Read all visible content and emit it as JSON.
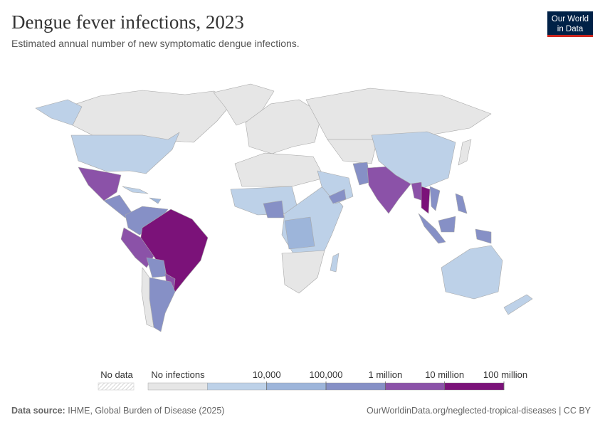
{
  "header": {
    "title": "Dengue fever infections, 2023",
    "subtitle": "Estimated annual number of new symptomatic dengue infections."
  },
  "logo": {
    "line1": "Our World",
    "line2": "in Data"
  },
  "legend": {
    "no_data": "No data",
    "no_infections": "No infections",
    "colors": [
      "#e6e6e6",
      "#bdd1e8",
      "#9db5da",
      "#8690c6",
      "#8b52a8",
      "#7b1279"
    ],
    "thresholds": [
      "10,000",
      "100,000",
      "1 million",
      "10 million",
      "100 million"
    ]
  },
  "footer": {
    "source_label": "Data source:",
    "source": "IHME, Global Burden of Disease (2025)",
    "url": "OurWorldinData.org/neglected-tropical-diseases | CC BY"
  }
}
